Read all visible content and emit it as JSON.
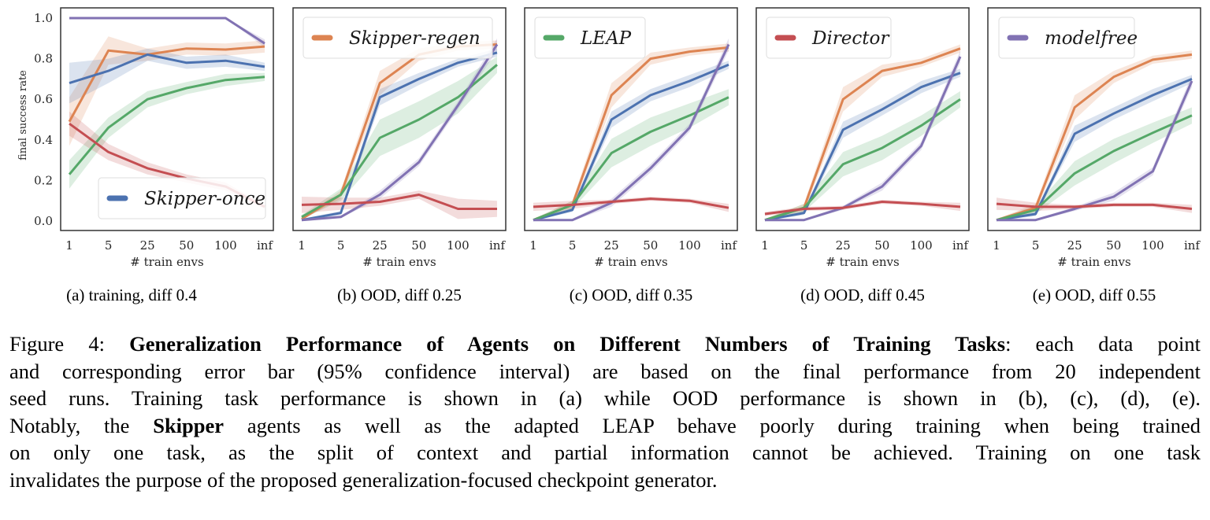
{
  "figure_number": "Figure 4:",
  "caption": {
    "title_bold": "Generalization Performance of Agents on Different Numbers of Training Tasks",
    "lines": [
      {
        "segments": [
          {
            "text": "Figure 4: ",
            "bold": false
          },
          {
            "text": "Generalization Performance of Agents on Different Numbers of Training Tasks",
            "bold": true
          },
          {
            "text": ": each data point",
            "bold": false
          }
        ]
      },
      {
        "segments": [
          {
            "text": "and corresponding error bar (95% confidence interval) are based on the final performance from 20 independent",
            "bold": false
          }
        ]
      },
      {
        "segments": [
          {
            "text": "seed runs.  Training task performance is shown in (a) while OOD performance is shown in (b), (c), (d), (e).",
            "bold": false
          }
        ]
      },
      {
        "segments": [
          {
            "text": "Notably, the ",
            "bold": false
          },
          {
            "text": "Skipper",
            "bold": true
          },
          {
            "text": " agents as well as the adapted LEAP behave poorly during training when being trained",
            "bold": false
          }
        ]
      },
      {
        "segments": [
          {
            "text": "on only one task, as the split of context and partial information cannot be achieved.  Training on one task",
            "bold": false
          }
        ]
      },
      {
        "segments": [
          {
            "text": "invalidates the purpose of the proposed generalization-focused checkpoint generator.",
            "bold": false
          }
        ]
      }
    ]
  },
  "colors": {
    "Skipper-once": "#4c72b0",
    "Skipper-regen": "#dd8452",
    "LEAP": "#55a868",
    "Director": "#c44e52",
    "modelfree": "#8172b3"
  },
  "chart_data": [
    {
      "type": "line",
      "panel": "a",
      "subcaption": "(a) training, diff 0.4",
      "title": "",
      "xlabel": "# train envs",
      "ylabel": "final success rate",
      "x": [
        "1",
        "5",
        "25",
        "50",
        "100",
        "inf"
      ],
      "yticks": [
        "0.0",
        "0.2",
        "0.4",
        "0.6",
        "0.8",
        "1.0"
      ],
      "ylim": [
        0.0,
        1.0
      ],
      "grid": false,
      "legend": {
        "entries": [
          "Skipper-once"
        ],
        "placement": "lower-right"
      },
      "series": [
        {
          "name": "Skipper-once",
          "values": [
            0.68,
            0.74,
            0.82,
            0.78,
            0.79,
            0.76
          ],
          "ci": [
            0.1,
            0.06,
            0.03,
            0.03,
            0.03,
            0.02
          ]
        },
        {
          "name": "Skipper-regen",
          "values": [
            0.49,
            0.84,
            0.82,
            0.85,
            0.845,
            0.86
          ],
          "ci": [
            0.12,
            0.07,
            0.03,
            0.03,
            0.03,
            0.03
          ]
        },
        {
          "name": "LEAP",
          "values": [
            0.23,
            0.46,
            0.6,
            0.655,
            0.695,
            0.71
          ],
          "ci": [
            0.07,
            0.05,
            0.04,
            0.03,
            0.03,
            0.02
          ]
        },
        {
          "name": "Director",
          "values": [
            0.48,
            0.34,
            0.26,
            0.21,
            0.17,
            0.07
          ],
          "ci": [
            0.06,
            0.04,
            0.03,
            0.02,
            0.02,
            0.01
          ]
        },
        {
          "name": "modelfree",
          "values": [
            1.0,
            1.0,
            1.0,
            1.0,
            1.0,
            0.875
          ],
          "ci": [
            0.0,
            0.0,
            0.0,
            0.0,
            0.0,
            0.02
          ]
        }
      ]
    },
    {
      "type": "line",
      "panel": "b",
      "subcaption": "(b) OOD, diff 0.25",
      "title": "",
      "xlabel": "# train envs",
      "ylabel": "",
      "x": [
        "1",
        "5",
        "25",
        "50",
        "100",
        "inf"
      ],
      "ylim": [
        0.0,
        1.0
      ],
      "grid": false,
      "legend": {
        "entries": [
          "Skipper-regen"
        ],
        "placement": "upper-left"
      },
      "series": [
        {
          "name": "Skipper-once",
          "values": [
            0.005,
            0.04,
            0.61,
            0.7,
            0.78,
            0.83
          ],
          "ci": [
            0.005,
            0.01,
            0.04,
            0.03,
            0.02,
            0.02
          ]
        },
        {
          "name": "Skipper-regen",
          "values": [
            0.01,
            0.13,
            0.68,
            0.82,
            0.86,
            0.87
          ],
          "ci": [
            0.005,
            0.02,
            0.06,
            0.03,
            0.02,
            0.02
          ]
        },
        {
          "name": "LEAP",
          "values": [
            0.02,
            0.13,
            0.41,
            0.5,
            0.61,
            0.77
          ],
          "ci": [
            0.01,
            0.03,
            0.09,
            0.09,
            0.08,
            0.04
          ]
        },
        {
          "name": "Director",
          "values": [
            0.08,
            0.085,
            0.095,
            0.13,
            0.06,
            0.06
          ],
          "ci": [
            0.04,
            0.03,
            0.02,
            0.02,
            0.05,
            0.04
          ]
        },
        {
          "name": "modelfree",
          "values": [
            0.005,
            0.02,
            0.13,
            0.29,
            0.57,
            0.87
          ],
          "ci": [
            0.005,
            0.005,
            0.02,
            0.02,
            0.02,
            0.03
          ]
        }
      ]
    },
    {
      "type": "line",
      "panel": "c",
      "subcaption": "(c) OOD, diff 0.35",
      "title": "",
      "xlabel": "# train envs",
      "ylabel": "",
      "x": [
        "1",
        "5",
        "25",
        "50",
        "100",
        "inf"
      ],
      "ylim": [
        0.0,
        1.0
      ],
      "grid": false,
      "legend": {
        "entries": [
          "LEAP"
        ],
        "placement": "upper-left"
      },
      "series": [
        {
          "name": "Skipper-once",
          "values": [
            0.005,
            0.055,
            0.5,
            0.62,
            0.69,
            0.77
          ],
          "ci": [
            0.005,
            0.01,
            0.04,
            0.03,
            0.03,
            0.02
          ]
        },
        {
          "name": "Skipper-regen",
          "values": [
            0.005,
            0.08,
            0.62,
            0.8,
            0.835,
            0.855
          ],
          "ci": [
            0.005,
            0.02,
            0.06,
            0.03,
            0.02,
            0.02
          ]
        },
        {
          "name": "LEAP",
          "values": [
            0.005,
            0.08,
            0.335,
            0.44,
            0.52,
            0.61
          ],
          "ci": [
            0.005,
            0.02,
            0.07,
            0.07,
            0.06,
            0.04
          ]
        },
        {
          "name": "Director",
          "values": [
            0.07,
            0.08,
            0.095,
            0.11,
            0.1,
            0.065
          ],
          "ci": [
            0.02,
            0.02,
            0.01,
            0.01,
            0.01,
            0.02
          ]
        },
        {
          "name": "modelfree",
          "values": [
            0.005,
            0.005,
            0.09,
            0.26,
            0.46,
            0.87
          ],
          "ci": [
            0.005,
            0.005,
            0.02,
            0.02,
            0.02,
            0.03
          ]
        }
      ]
    },
    {
      "type": "line",
      "panel": "d",
      "subcaption": "(d) OOD, diff 0.45",
      "title": "",
      "xlabel": "# train envs",
      "ylabel": "",
      "x": [
        "1",
        "5",
        "25",
        "50",
        "100",
        "inf"
      ],
      "ylim": [
        0.0,
        1.0
      ],
      "grid": false,
      "legend": {
        "entries": [
          "Director"
        ],
        "placement": "upper-left"
      },
      "series": [
        {
          "name": "Skipper-once",
          "values": [
            0.005,
            0.04,
            0.45,
            0.55,
            0.66,
            0.73
          ],
          "ci": [
            0.005,
            0.01,
            0.04,
            0.03,
            0.03,
            0.02
          ]
        },
        {
          "name": "Skipper-regen",
          "values": [
            0.005,
            0.065,
            0.6,
            0.74,
            0.78,
            0.85
          ],
          "ci": [
            0.005,
            0.02,
            0.06,
            0.03,
            0.02,
            0.02
          ]
        },
        {
          "name": "LEAP",
          "values": [
            0.005,
            0.065,
            0.28,
            0.36,
            0.47,
            0.6
          ],
          "ci": [
            0.005,
            0.02,
            0.06,
            0.06,
            0.05,
            0.04
          ]
        },
        {
          "name": "Director",
          "values": [
            0.035,
            0.06,
            0.065,
            0.095,
            0.085,
            0.07
          ],
          "ci": [
            0.01,
            0.01,
            0.01,
            0.01,
            0.01,
            0.02
          ]
        },
        {
          "name": "modelfree",
          "values": [
            0.005,
            0.005,
            0.065,
            0.17,
            0.37,
            0.81
          ],
          "ci": [
            0.005,
            0.005,
            0.01,
            0.02,
            0.02,
            0.03
          ]
        }
      ]
    },
    {
      "type": "line",
      "panel": "e",
      "subcaption": "(e) OOD, diff 0.55",
      "title": "",
      "xlabel": "# train envs",
      "ylabel": "",
      "x": [
        "1",
        "5",
        "25",
        "50",
        "100",
        "inf"
      ],
      "ylim": [
        0.0,
        1.0
      ],
      "grid": false,
      "legend": {
        "entries": [
          "modelfree"
        ],
        "placement": "upper-left"
      },
      "series": [
        {
          "name": "Skipper-once",
          "values": [
            0.005,
            0.035,
            0.43,
            0.53,
            0.62,
            0.7
          ],
          "ci": [
            0.005,
            0.01,
            0.04,
            0.03,
            0.03,
            0.02
          ]
        },
        {
          "name": "Skipper-regen",
          "values": [
            0.005,
            0.065,
            0.56,
            0.71,
            0.795,
            0.82
          ],
          "ci": [
            0.005,
            0.02,
            0.06,
            0.03,
            0.02,
            0.02
          ]
        },
        {
          "name": "LEAP",
          "values": [
            0.005,
            0.055,
            0.235,
            0.345,
            0.435,
            0.52
          ],
          "ci": [
            0.005,
            0.02,
            0.06,
            0.06,
            0.05,
            0.04
          ]
        },
        {
          "name": "Director",
          "values": [
            0.085,
            0.07,
            0.07,
            0.08,
            0.08,
            0.06
          ],
          "ci": [
            0.03,
            0.02,
            0.01,
            0.01,
            0.01,
            0.02
          ]
        },
        {
          "name": "modelfree",
          "values": [
            0.005,
            0.005,
            0.06,
            0.12,
            0.245,
            0.69
          ],
          "ci": [
            0.005,
            0.005,
            0.01,
            0.02,
            0.02,
            0.03
          ]
        }
      ]
    }
  ]
}
